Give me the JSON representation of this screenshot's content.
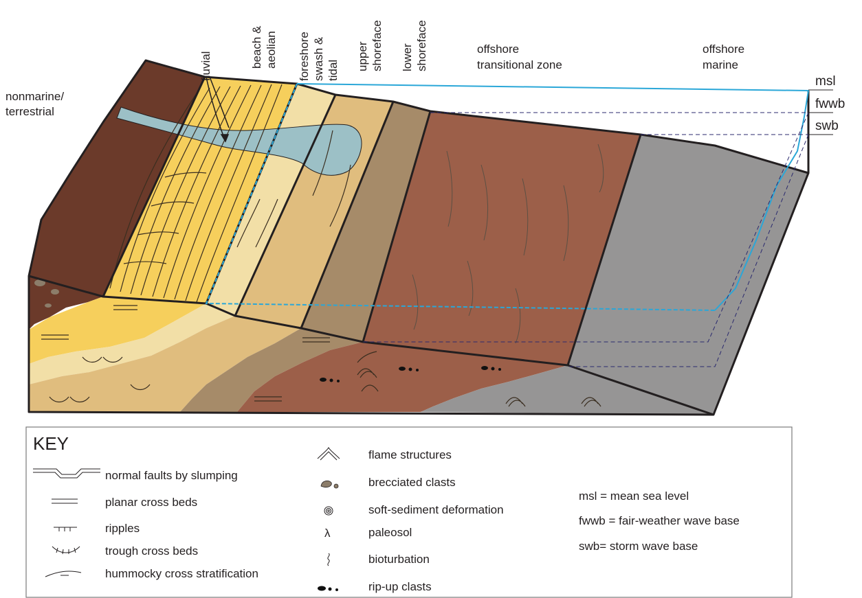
{
  "zones": {
    "nonmarine": [
      "nonmarine/",
      "terrestrial"
    ],
    "fluvial": "fluvial",
    "beach": [
      "beach &",
      "aeolian"
    ],
    "foreshore": [
      "foreshore",
      "swash &",
      "tidal"
    ],
    "upper": [
      "upper",
      "shoreface"
    ],
    "lower": [
      "lower",
      "shoreface"
    ],
    "offshore_transitional": [
      "offshore",
      "transitional zone"
    ],
    "offshore_marine": [
      "offshore",
      "marine"
    ]
  },
  "levels": {
    "msl": "msl",
    "fwwb": "fwwb",
    "swb": "swb"
  },
  "colors": {
    "nonmarine": "#6b3a2a",
    "fluvial_beach": "#f6cf5c",
    "foreshore": "#f2dfa7",
    "upper_shoreface": "#e0bd7e",
    "lower_shoreface": "#a68b69",
    "offshore_transitional": "#9c5f49",
    "offshore_marine": "#969595",
    "river": "#9cc0c6",
    "water_line": "#2aa7d8",
    "dashed": "#2b2a6e"
  },
  "key": {
    "title": "KEY",
    "left": [
      {
        "icon": "normal-fault-icon",
        "label": "normal faults by slumping"
      },
      {
        "icon": "planar-cross-beds-icon",
        "label": "planar cross beds"
      },
      {
        "icon": "ripples-icon",
        "label": "ripples"
      },
      {
        "icon": "trough-cross-beds-icon",
        "label": "trough cross beds"
      },
      {
        "icon": "hummocky-icon",
        "label": "hummocky cross stratification"
      }
    ],
    "middle": [
      {
        "icon": "flame-structures-icon",
        "label": "flame structures"
      },
      {
        "icon": "brecciated-clasts-icon",
        "label": "brecciated clasts"
      },
      {
        "icon": "soft-sediment-icon",
        "label": "soft-sediment deformation"
      },
      {
        "icon": "paleosol-icon",
        "label": "paleosol",
        "symbol": "λ"
      },
      {
        "icon": "bioturbation-icon",
        "label": "bioturbation"
      },
      {
        "icon": "rip-up-clasts-icon",
        "label": "rip-up clasts"
      }
    ],
    "abbrev": [
      "msl = mean sea level",
      "fwwb = fair-weather wave base",
      "swb= storm wave base"
    ]
  }
}
